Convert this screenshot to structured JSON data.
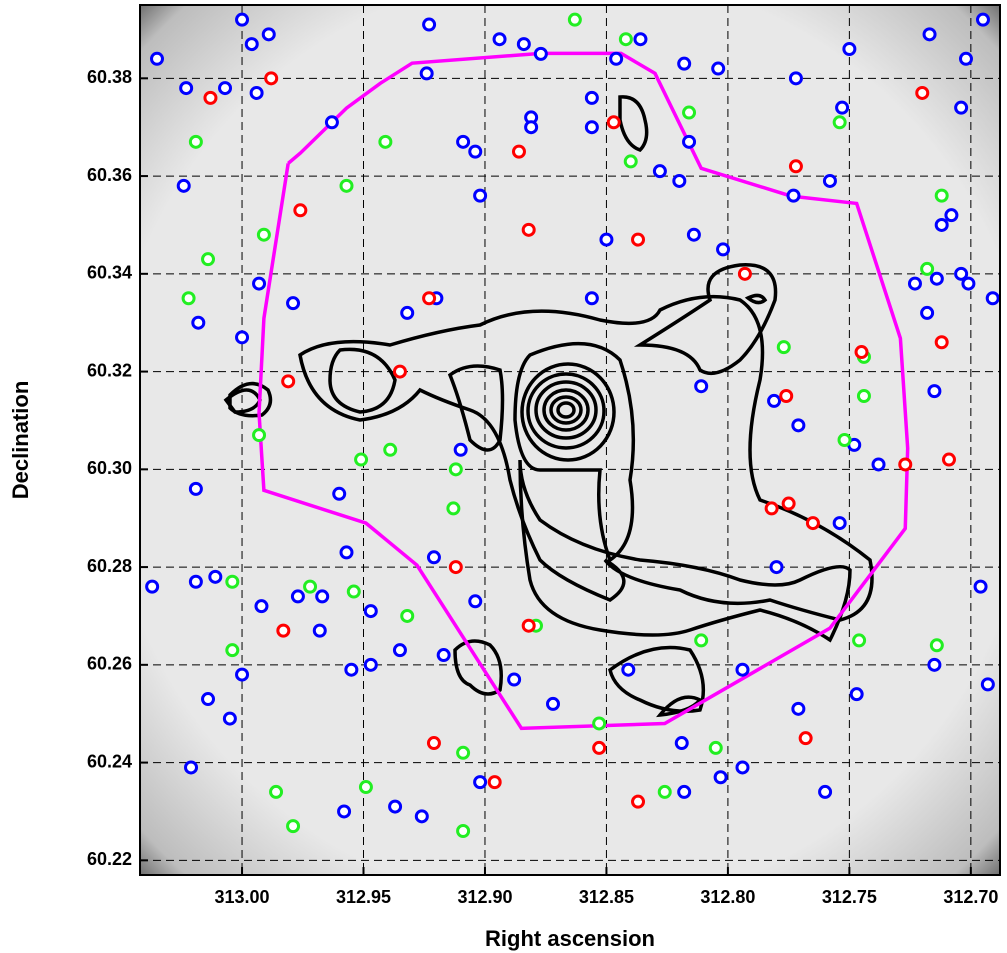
{
  "chart_data": {
    "type": "scatter",
    "xlabel": "Right ascension",
    "ylabel": "Declination",
    "xlim": [
      313.042,
      312.688
    ],
    "ylim": [
      60.217,
      60.395
    ],
    "xticks": [
      {
        "value": 313.0,
        "label": "313.00"
      },
      312.95,
      {
        "value": 312.9,
        "label": "312.90"
      },
      312.85,
      {
        "value": 312.8,
        "label": "312.80"
      },
      312.75,
      {
        "value": 312.7,
        "label": "312.70"
      }
    ],
    "yticks": [
      60.22,
      60.24,
      60.26,
      60.28,
      {
        "value": 60.3,
        "label": "60.30"
      },
      60.32,
      60.34,
      60.36,
      60.38
    ],
    "grid": true,
    "series": [
      {
        "color": "#0000ff",
        "x": [
          313.0,
          312.996,
          312.989,
          313.035,
          313.023,
          313.007,
          312.994,
          312.923,
          312.924,
          312.894,
          312.884,
          312.877,
          312.846,
          312.836,
          312.818,
          312.804,
          312.75,
          312.772,
          312.717,
          312.702,
          312.695,
          312.963,
          312.909,
          312.904,
          312.881,
          312.881,
          312.856,
          312.856,
          312.828,
          312.82,
          312.816,
          312.758,
          312.773,
          312.753,
          312.704,
          313.024,
          312.902,
          312.85,
          312.814,
          312.802,
          312.708,
          312.712,
          312.714,
          312.704,
          312.701,
          312.723,
          312.718,
          312.691,
          312.993,
          312.979,
          313.018,
          313.0,
          312.932,
          312.92,
          312.856,
          312.811,
          312.781,
          312.771,
          312.748,
          312.738,
          312.715,
          312.91,
          313.019,
          312.96,
          312.957,
          312.921,
          313.037,
          313.019,
          313.011,
          312.977,
          312.967,
          312.992,
          312.947,
          312.968,
          313.0,
          312.947,
          312.935,
          312.917,
          312.955,
          312.904,
          312.888,
          312.872,
          312.841,
          312.794,
          312.78,
          312.754,
          312.747,
          312.771,
          312.715,
          312.696,
          312.693,
          313.014,
          313.005,
          313.021,
          312.902,
          312.818,
          312.803,
          312.794,
          312.819,
          312.76,
          312.958,
          312.937,
          312.926
        ],
        "values": [
          60.392,
          60.387,
          60.389,
          60.384,
          60.378,
          60.378,
          60.377,
          60.391,
          60.381,
          60.388,
          60.387,
          60.385,
          60.384,
          60.388,
          60.383,
          60.382,
          60.386,
          60.38,
          60.389,
          60.384,
          60.392,
          60.371,
          60.367,
          60.365,
          60.372,
          60.37,
          60.376,
          60.37,
          60.361,
          60.359,
          60.367,
          60.359,
          60.356,
          60.374,
          60.374,
          60.358,
          60.356,
          60.347,
          60.348,
          60.345,
          60.352,
          60.35,
          60.339,
          60.34,
          60.338,
          60.338,
          60.332,
          60.335,
          60.338,
          60.334,
          60.33,
          60.327,
          60.332,
          60.335,
          60.335,
          60.317,
          60.314,
          60.309,
          60.305,
          60.301,
          60.316,
          60.304,
          60.296,
          60.295,
          60.283,
          60.282,
          60.276,
          60.277,
          60.278,
          60.274,
          60.274,
          60.272,
          60.271,
          60.267,
          60.258,
          60.26,
          60.263,
          60.262,
          60.259,
          60.273,
          60.257,
          60.252,
          60.259,
          60.259,
          60.28,
          60.289,
          60.254,
          60.251,
          60.26,
          60.276,
          60.256,
          60.253,
          60.249,
          60.239,
          60.236,
          60.234,
          60.237,
          60.239,
          60.244,
          60.234,
          60.23,
          60.231,
          60.229
        ]
      },
      {
        "color": "#22ee22",
        "x": [
          312.863,
          312.842,
          313.019,
          312.941,
          312.957,
          312.991,
          313.014,
          313.022,
          312.816,
          312.84,
          312.754,
          312.712,
          312.718,
          312.777,
          312.744,
          312.752,
          312.993,
          312.951,
          312.939,
          312.912,
          312.913,
          313.004,
          312.972,
          312.954,
          312.932,
          313.004,
          312.879,
          312.811,
          312.746,
          312.714,
          312.853,
          312.909,
          312.805,
          312.826,
          312.949,
          312.986,
          312.979,
          312.909,
          312.744
        ],
        "values": [
          60.392,
          60.388,
          60.367,
          60.367,
          60.358,
          60.348,
          60.343,
          60.335,
          60.373,
          60.363,
          60.371,
          60.356,
          60.341,
          60.325,
          60.315,
          60.306,
          60.307,
          60.302,
          60.304,
          60.3,
          60.292,
          60.277,
          60.276,
          60.275,
          60.27,
          60.263,
          60.268,
          60.265,
          60.265,
          60.264,
          60.248,
          60.242,
          60.243,
          60.234,
          60.235,
          60.234,
          60.227,
          60.226,
          60.323
        ]
      },
      {
        "color": "#ff0000",
        "x": [
          312.988,
          313.013,
          312.976,
          312.923,
          312.886,
          312.882,
          312.837,
          312.847,
          312.793,
          312.772,
          312.72,
          312.745,
          312.935,
          312.981,
          312.776,
          312.712,
          312.727,
          312.709,
          312.782,
          312.775,
          312.765,
          312.912,
          312.983,
          312.882,
          312.921,
          312.853,
          312.837,
          312.896,
          312.768
        ],
        "values": [
          60.38,
          60.376,
          60.353,
          60.335,
          60.365,
          60.349,
          60.347,
          60.371,
          60.34,
          60.362,
          60.377,
          60.324,
          60.32,
          60.318,
          60.315,
          60.326,
          60.301,
          60.302,
          60.292,
          60.293,
          60.289,
          60.28,
          60.267,
          60.268,
          60.244,
          60.243,
          60.232,
          60.236,
          60.245
        ]
      },
      {
        "type": "line",
        "color": "#ff00ff",
        "x": [
          312.981,
          312.991,
          312.993,
          312.991,
          312.949,
          312.928,
          312.885,
          312.826,
          312.758,
          312.727,
          312.726,
          312.729,
          312.747,
          312.774,
          312.811,
          312.83,
          312.844,
          312.877,
          312.93,
          312.943,
          312.957,
          312.976,
          312.981
        ],
        "values": [
          60.3626,
          60.3309,
          60.3115,
          60.2957,
          60.289,
          60.2804,
          60.247,
          60.248,
          60.2675,
          60.2879,
          60.3043,
          60.3268,
          60.3544,
          60.3559,
          60.3616,
          60.381,
          60.3851,
          60.3851,
          60.3831,
          60.379,
          60.3739,
          60.3647,
          60.3626
        ]
      }
    ]
  }
}
